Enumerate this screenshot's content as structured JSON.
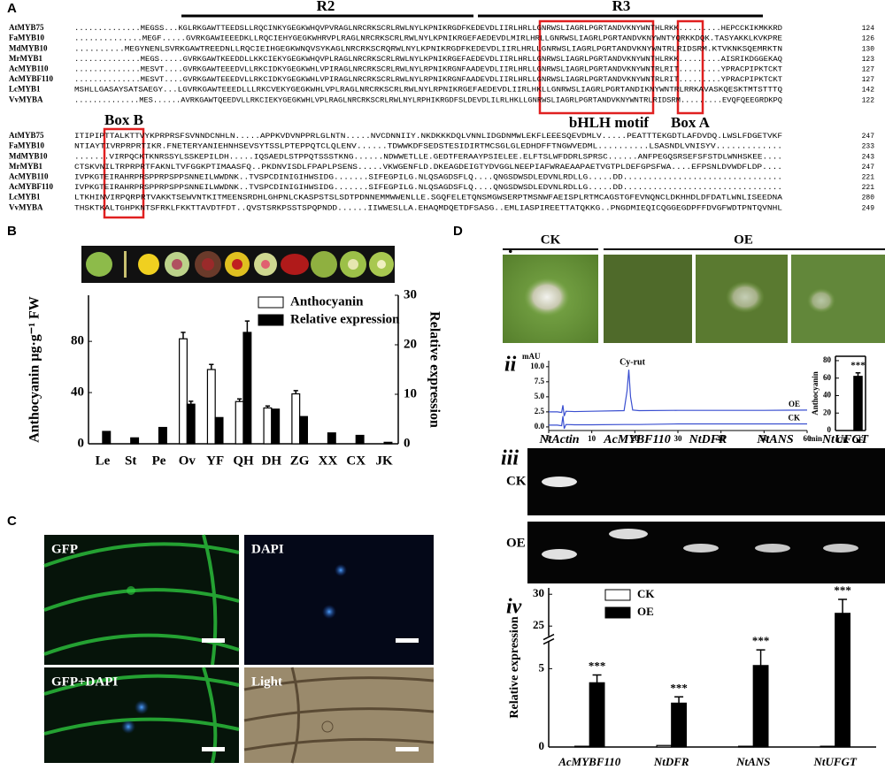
{
  "figure": {
    "panels": [
      "A",
      "B",
      "C",
      "D"
    ],
    "subpanels": [
      "i",
      "ii",
      "iii",
      "iv"
    ],
    "alignment": {
      "motifs": [
        "R2",
        "R3",
        "bHLH motif",
        "Box A",
        "Box B"
      ],
      "block1": [
        {
          "name": "AtMYB75",
          "seq": "..............MEGSS...KGLRKGAWTTEEDSLLRQCINKYGEGKWHQVPVRAGLNRCRKSCRLRWLNYLKPNIKRGDFKEDEVDLIIRLHRLLGNRWSLIAGRLPGRTANDVKNYWNTHLRKK.........HEPCCKIKMKKRD",
          "num": "124"
        },
        {
          "name": "FaMYB10",
          "seq": "..............MEGF.....GVRKGAWIEEEDKLLRQCIEHYGEGKWHRVPLRAGLNRCRKSCRLRWLNYLKPNIKRGEFAEDEVDLMIRLHRLLGNRWSLIAGRLPGRTANDVKNYWNTYQRKKDQK.TASYAKKLKVKPRE",
          "num": "126"
        },
        {
          "name": "MdMYB10",
          "seq": "..........MEGYNENLSVRKGAWTREEDNLLRQCIEIHGEGKWNQVSYKAGLNRCRKSCRQRWLNYLKPNIKRGDFKEDEVDLIIRLHRLLGNRWSLIAGRLPGRTANDVKNYWNTRLRIDSRM.KTVKNKSQEMRKTN",
          "num": "130"
        },
        {
          "name": "MrMYB1",
          "seq": "..............MEGS.....GVRKGAWTKEEDDLLKKCIEKYGEGKWHQVPLRAGLNRCRKSCRLRWLNYLKPNIKRGEFAEDEVDLIIRLHRLLGNRWSLIAGRLPGRTANDVKNYWNTHLRKK.........AISRIKDGGEKAQ",
          "num": "123"
        },
        {
          "name": "AcMYB110",
          "seq": "..............MESVT....GVRKGAWTEEEDVLLRKCIDKYGEGKWHLVPIRAGLNRCRKSCRLRWLNYLRPNIKRGNFAADEVDLIIRLHRLLGNRWSLIAGRLPGRTANDVKNYWNTRLRIT.........YPRACPIPKTCKT",
          "num": "127"
        },
        {
          "name": "AcMYBF110",
          "seq": "..............MESVT....GVRKGAWTEEEDVLLRKCIDKYGEGKWHLVPIRAGLNRCRKSCRLRWLNYLRPNIKRGNFAADEVDLIIRLHRLLGNRWSLIAGRLPGRTANDVKNYWNTRLRIT.........YPRACPIPKTCKT",
          "num": "127"
        },
        {
          "name": "LcMYB1",
          "seq": "MSHLLGASAYSATSAEGY...LGVRKGAWTEEEDLLLRKCVEKYGEGKWHLVPLRAGLNRCRKSCRLRWLNYLRPNIKRGEFAEDEVDLIIRLHKLLGNRWSLIAGRLPGRTANDIKNYWNTRLRRKAVASKQESKTMTSTTTQ",
          "num": "142"
        },
        {
          "name": "VvMYBA",
          "seq": "..............MES......AVRKGAWTQEEDVLLRKCIEKYGEGKWHLVPLRAGLNRCRKSCRLRWLNYLRPHIKRGDFSLDEVDLILRLHKLLGNRWSLIAGRLPGRTANDVKNYWNTRLRIDSRM.........EVQFQEEGRDKPQ",
          "num": "122"
        }
      ],
      "block2": [
        {
          "name": "AtMYB75",
          "seq": "ITIPIPTTALKTTVYKPRPRSFSVNNDCNHLN.....APPKVDVNPPRLGLNTN.....NVCDNNIIY.NKDKKKDQLVNNLIDGDNMWLEKFLEEESQEVDMLV.....PEATTTEKGDTLAFDVDQ.LWSLFDGETVKF",
          "num": "247"
        },
        {
          "name": "FaMYB10",
          "seq": "NTIAYTIVRPRPRTIKR.FNETERYANIEHNHSEVSYTSSLPTEPPQTCLQLENV......TDWWKDFSEDSTESIDIRTMCSGLGLEDHDFFTNGWVEDML..........LSASNDLVNISYV.............",
          "num": "233"
        },
        {
          "name": "MdMYB10",
          "seq": ".......VIRPQCKTKNRSSYLSSKEPILDH.....IQSAEDLSTPPQTSSSTKNG......NDWWETLLE.GEDTFERAAYPSIELEE.ELFTSLWFDDRLSPRSC......ANFPEGQSRSEFSFSTDLWNHSKEE....",
          "num": "243"
        },
        {
          "name": "MrMYB1",
          "seq": "CTSKVNILTRPRPRTFAKNLTVFGGKPTIMAASFQ..PKDNVISDLFPAPLPSENS.....VKWGENFLD.DKEAGDEIGTYDVGGLNEEPIAFWRAEAAPAETVGTPLDEFGPSFWA....EFPSNLDVWDFLDP....",
          "num": "247"
        },
        {
          "name": "AcMYB110",
          "seq": "IVPKGTEIRAHRPRSPPRPSPPSNNEILWWDNK..TVSPCDINIGIHWSIDG.......SIFEGPILG.NLQSAGDSFLQ....QNGSDWSDLEDVNLRDLLG.....DD................................",
          "num": "221"
        },
        {
          "name": "AcMYBF110",
          "seq": "IVPKGTEIRAHRPRSPPRPSPPSNNEILWWDNK..TVSPCDINIGIHWSIDG.......SIFEGPILG.NLQSAGDSFLQ....QNGSDWSDLEDVNLRDLLG.....DD................................",
          "num": "221"
        },
        {
          "name": "LcMYB1",
          "seq": "LTKHINVIRPQRPRTVAKKTSEWVNTKITMEENSRDHLGHPNLCKASPSTSLSDTPDNNEMMWWENLLE.SGQFELETQNSMGWSERPTMSNWFAEISPLRTMCAGSTGFEVNQNCLDKHHDLDFDATLWNLISEEDNA",
          "num": "280"
        },
        {
          "name": "VvMYBA",
          "seq": "THSKTKALTGHPKNTSFRKLFKKTTAVDTFDT..QVSTSRKPSSTSPQPNDD......IIWWESLLA.EHAQMDQETDFSASG..EMLIASPIREETTATQKKG..PNGDMIEQICQGGEGDPFFDVGFWDTPNTQVNHL",
          "num": "249"
        }
      ]
    },
    "microscopy": [
      "GFP",
      "DAPI",
      "GFP+DAPI",
      "Light"
    ],
    "leaf_groups": [
      "CK",
      "OE"
    ],
    "gel_genes": [
      "NtActin",
      "AcMYBF110",
      "NtDFR",
      "NtANS",
      "NtUFGT"
    ],
    "gel_rows": [
      "CK",
      "OE"
    ]
  },
  "chart_data": [
    {
      "type": "bar",
      "y_label": "Anthocyanin µg·g⁻¹ FW",
      "y2_label": "Relative expression",
      "categories": [
        "Le",
        "St",
        "Pe",
        "Ov",
        "YF",
        "QH",
        "DH",
        "ZG",
        "XX",
        "CX",
        "JK"
      ],
      "series": [
        {
          "name": "Anthocyanin",
          "color": "#ffffff",
          "values": [
            0,
            0,
            0,
            82,
            58,
            33,
            28,
            39,
            0,
            0,
            0
          ],
          "errors": [
            null,
            null,
            null,
            5,
            4,
            2,
            1.5,
            2.5,
            null,
            null,
            null
          ]
        },
        {
          "name": "Relative expression",
          "color": "#000000",
          "axis": "y2",
          "values": [
            2.5,
            1.2,
            3.3,
            8,
            5.3,
            22.5,
            7,
            5.5,
            2.2,
            1.7,
            0.3
          ],
          "errors": [
            null,
            null,
            null,
            0.6,
            null,
            2.3,
            null,
            null,
            null,
            null,
            null
          ]
        }
      ],
      "ylim": [
        0,
        116
      ],
      "yticks": [
        0,
        40,
        80
      ],
      "y2lim": [
        0,
        30
      ],
      "y2ticks": [
        0,
        10,
        20,
        30
      ],
      "legend": "upper-right"
    },
    {
      "type": "line",
      "y_label": "mAU",
      "x_label": "min",
      "annotation": "Cy-rut",
      "x": [
        0,
        2,
        3,
        3.3,
        3.6,
        4,
        6,
        10,
        17.5,
        18.2,
        18.6,
        19,
        19.5,
        21,
        30,
        40,
        50,
        60
      ],
      "series": [
        {
          "name": "OE",
          "color": "#3a4fd0",
          "values": [
            2.5,
            2.5,
            2.4,
            3.6,
            1.8,
            2.6,
            2.55,
            2.6,
            2.7,
            6,
            9.5,
            5,
            2.8,
            2.7,
            2.75,
            2.75,
            2.75,
            2.8
          ]
        },
        {
          "name": "CK",
          "color": "#3a4fd0",
          "values": [
            0.3,
            0.3,
            0.2,
            1.8,
            -0.3,
            0.4,
            0.35,
            0.35,
            0.4,
            0.4,
            0.4,
            0.4,
            0.4,
            0.4,
            0.5,
            0.5,
            0.5,
            0.5
          ]
        }
      ],
      "xlim": [
        0,
        60
      ],
      "xticks": [
        0,
        10,
        20,
        30,
        40,
        50,
        60
      ],
      "ylim": [
        -0.6,
        11
      ],
      "yticks": [
        {
          "value": 0,
          "label": "0.0"
        },
        2.5,
        {
          "value": 5,
          "label": "5.0"
        },
        7.5,
        {
          "value": 10,
          "label": "10.0"
        }
      ]
    },
    {
      "type": "bar",
      "y_label": "Anthocyanin",
      "annotation": "***",
      "categories": [
        "CK",
        "OE"
      ],
      "values": [
        0,
        62
      ],
      "errors": [
        null,
        4
      ],
      "color": "#000000",
      "ylim": [
        0,
        85
      ],
      "yticks": [
        0,
        20,
        40,
        60,
        80
      ]
    },
    {
      "type": "bar",
      "y_label": "Relative expression",
      "categories": [
        "AcMYBF110",
        "NtDFR",
        "NtANS",
        "NtUFGT"
      ],
      "series": [
        {
          "name": "CK",
          "color": "#ffffff",
          "values": [
            0.05,
            0.1,
            0.05,
            0.05
          ],
          "errors": [
            null,
            null,
            null,
            null
          ]
        },
        {
          "name": "OE",
          "color": "#000000",
          "values": [
            4.1,
            2.8,
            5.2,
            27
          ],
          "errors": [
            0.5,
            0.4,
            1.0,
            2.2
          ]
        }
      ],
      "annotations": [
        "***",
        "***",
        "***",
        "***"
      ],
      "ylim": [
        0,
        31
      ],
      "yticks": [
        0,
        5,
        25,
        30
      ],
      "y_break": [
        6.5,
        24
      ],
      "legend": "upper-left"
    }
  ]
}
